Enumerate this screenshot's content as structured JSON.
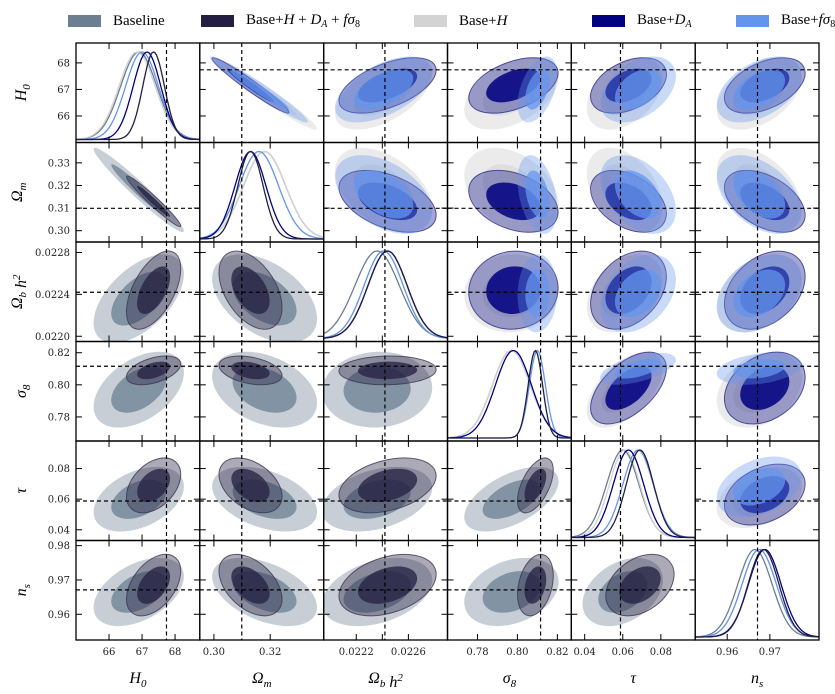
{
  "legend": [
    {
      "key": "baseline",
      "label": "Baseline",
      "color": "#6b7f91"
    },
    {
      "key": "all",
      "label": "Base+H + D_A + fσ8",
      "color": "#241f40"
    },
    {
      "key": "H",
      "label": "Base+H",
      "color": "#d3d3d3"
    },
    {
      "key": "DA",
      "label": "Base+D_A",
      "color": "#000080"
    },
    {
      "key": "fs8",
      "label": "Base+fσ8",
      "color": "#6495ed"
    }
  ],
  "chart_data": {
    "type": "scatter",
    "subtype": "corner-plot",
    "title": "",
    "grid": false,
    "legend_position": "top",
    "parameters": [
      {
        "key": "H0",
        "label": "H_0",
        "range": [
          65.0,
          68.75
        ],
        "ticks": [
          66,
          67,
          68
        ],
        "tick_labels": [
          "66",
          "67",
          "68"
        ],
        "fiducial": 67.74
      },
      {
        "key": "Om",
        "label": "Ω_m",
        "range": [
          0.295,
          0.339
        ],
        "ticks": [
          0.3,
          0.31,
          0.32,
          0.33
        ],
        "tick_labels": [
          "0.30",
          "0.31",
          "0.32",
          "0.33"
        ],
        "xticks": [
          0.3,
          0.32
        ],
        "xtick_labels": [
          "0.30",
          "0.32"
        ],
        "fiducial": 0.3099
      },
      {
        "key": "Obh2",
        "label": "Ω_b h^2",
        "range": [
          0.02195,
          0.0229
        ],
        "ticks": [
          0.022,
          0.0224,
          0.0228
        ],
        "tick_labels": [
          "0.0220",
          "0.0224",
          "0.0228"
        ],
        "xticks": [
          0.0222,
          0.0224,
          0.0226
        ],
        "xtick_labels": [
          "0.0222",
          "",
          "0.0226"
        ],
        "fiducial": 0.02242
      },
      {
        "key": "s8",
        "label": "σ_8",
        "range": [
          0.765,
          0.827
        ],
        "ticks": [
          0.78,
          0.8,
          0.82
        ],
        "tick_labels": [
          "0.78",
          "0.80",
          "0.82"
        ],
        "fiducial": 0.8116
      },
      {
        "key": "tau",
        "label": "τ",
        "range": [
          0.033,
          0.098
        ],
        "ticks": [
          0.04,
          0.06,
          0.08
        ],
        "tick_labels": [
          "0.04",
          "0.06",
          "0.08"
        ],
        "fiducial": 0.0588
      },
      {
        "key": "ns",
        "label": "n_s",
        "range": [
          0.9525,
          0.9815
        ],
        "ticks": [
          0.96,
          0.97,
          0.98
        ],
        "tick_labels": [
          "0.96",
          "0.97",
          "0.98"
        ],
        "xticks": [
          0.96,
          0.97
        ],
        "xtick_labels": [
          "0.96",
          "0.97"
        ],
        "fiducial": 0.9671
      }
    ],
    "series": [
      {
        "key": "baseline",
        "name": "Baseline",
        "color": "#6b7f91",
        "mean": {
          "H0": 66.9,
          "Om": 0.318,
          "Obh2": 0.02236,
          "s8": 0.797,
          "tau": 0.06,
          "ns": 0.9665
        },
        "sigma": {
          "H0": 0.55,
          "Om": 0.0075,
          "Obh2": 0.00017,
          "s8": 0.0095,
          "tau": 0.0085,
          "ns": 0.004
        }
      },
      {
        "key": "all",
        "name": "Base+H + D_A + fσ8",
        "color": "#241f40",
        "mean": {
          "H0": 67.35,
          "Om": 0.313,
          "Obh2": 0.02244,
          "s8": 0.809,
          "tau": 0.069,
          "ns": 0.9685
        },
        "sigma": {
          "H0": 0.33,
          "Om": 0.0045,
          "Obh2": 0.00015,
          "s8": 0.0036,
          "tau": 0.0072,
          "ns": 0.0036
        }
      },
      {
        "key": "H",
        "name": "Base+H",
        "color": "#d3d3d3",
        "mean": {
          "H0": 66.85,
          "Om": 0.318,
          "Obh2": 0.02241,
          "s8": 0.797,
          "tau": 0.061,
          "ns": 0.9675
        },
        "sigma": {
          "H0": 0.55,
          "Om": 0.0075,
          "Obh2": 0.00015,
          "s8": 0.0095,
          "tau": 0.008,
          "ns": 0.004
        }
      },
      {
        "key": "DA",
        "name": "Base+D_A",
        "color": "#000080",
        "mean": {
          "H0": 67.15,
          "Om": 0.313,
          "Obh2": 0.02244,
          "s8": 0.798,
          "tau": 0.063,
          "ns": 0.9688
        },
        "sigma": {
          "H0": 0.42,
          "Om": 0.0055,
          "Obh2": 0.00015,
          "s8": 0.009,
          "tau": 0.008,
          "ns": 0.0038
        }
      },
      {
        "key": "fs8",
        "name": "Base+fσ8",
        "color": "#6495ed",
        "mean": {
          "H0": 67.0,
          "Om": 0.316,
          "Obh2": 0.02241,
          "s8": 0.81,
          "tau": 0.068,
          "ns": 0.9675
        },
        "sigma": {
          "H0": 0.5,
          "Om": 0.007,
          "Obh2": 0.00015,
          "s8": 0.004,
          "tau": 0.008,
          "ns": 0.004
        }
      }
    ],
    "correlations": {
      "H0|Om": -0.97,
      "H0|Obh2": 0.55,
      "H0|s8": 0.45,
      "H0|tau": 0.4,
      "H0|ns": 0.45,
      "Om|Obh2": -0.45,
      "Om|s8": -0.35,
      "Om|tau": -0.4,
      "Om|ns": -0.45,
      "Obh2|s8": 0.05,
      "Obh2|tau": 0.35,
      "Obh2|ns": 0.35,
      "s8|tau": 0.55,
      "s8|ns": 0.3,
      "tau|ns": 0.35
    },
    "lower_triangle_series": [
      "baseline",
      "all"
    ],
    "upper_triangle_series": [
      "H",
      "DA",
      "fs8"
    ],
    "diagonal_series": [
      "baseline",
      "H",
      "fs8",
      "DA",
      "all"
    ]
  }
}
